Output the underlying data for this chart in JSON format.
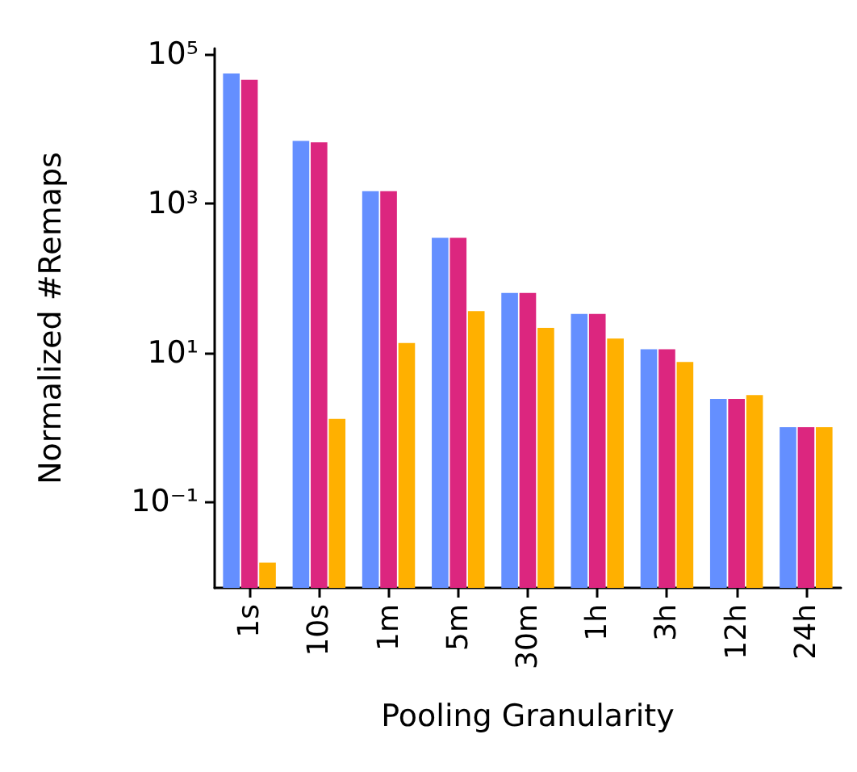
{
  "chart_data": {
    "type": "bar",
    "xlabel": "Pooling Granularity",
    "ylabel": "Normalized #Remaps",
    "categories": [
      "1s",
      "10s",
      "1m",
      "5m",
      "30m",
      "1h",
      "3h",
      "12h",
      "24h"
    ],
    "series": [
      {
        "color": "#648fff",
        "values": [
          55500,
          6900,
          1460,
          347,
          63,
          33,
          11.1,
          2.4,
          1.0
        ]
      },
      {
        "color": "#dc267f",
        "values": [
          45700,
          6600,
          1460,
          347,
          63,
          33,
          11.1,
          2.4,
          1.0
        ]
      },
      {
        "color": "#ffb000",
        "values": [
          0.0153,
          1.29,
          13.5,
          36,
          21.5,
          15.4,
          7.5,
          2.7,
          1.0
        ]
      }
    ],
    "log": "y",
    "ylim": [
      0.007,
      120000
    ],
    "yticks": [
      {
        "value": 0.1,
        "label": "10⁻¹"
      },
      {
        "value": 10,
        "label": "10¹"
      },
      {
        "value": 1000,
        "label": "10³"
      },
      {
        "value": 100000,
        "label": "10⁵"
      }
    ],
    "grid": false
  }
}
